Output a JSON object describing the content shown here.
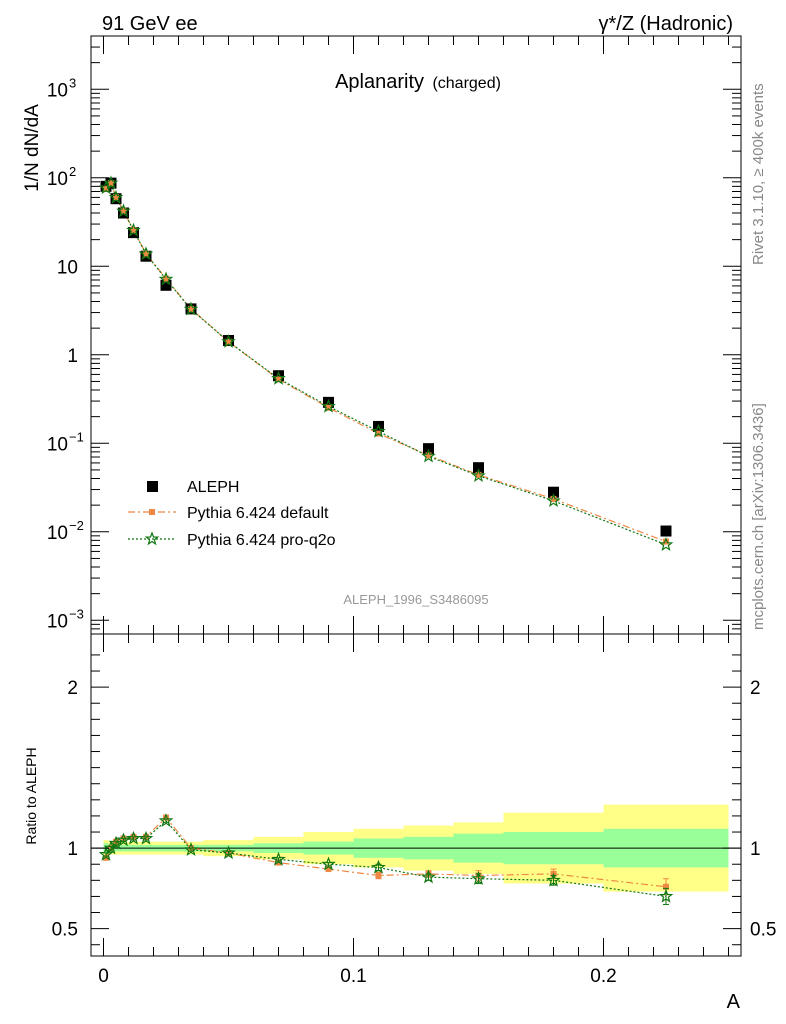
{
  "header": {
    "left": "91 GeV ee",
    "right_main": "γ*/Z (Hadronic)"
  },
  "side_labels": {
    "rivet": "Rivet 3.1.10, ≥ 400k events",
    "mcplots": "mcplots.cern.ch [arXiv:1306.3436]"
  },
  "chart_data": {
    "type": "line",
    "title_main": "Aplanarity",
    "title_sub": "(charged)",
    "analysis_tag": "ALEPH_1996_S3486095",
    "xlabel": "A",
    "ylabel": "1/N dN/dA",
    "ratio_ylabel": "Ratio to ALEPH",
    "xlim": [
      -0.005,
      0.255
    ],
    "ylim_log": [
      0.0007,
      4000
    ],
    "ratio_ylim": [
      0.33,
      2.33
    ],
    "x_ticks": [
      {
        "v": 0,
        "label": "0"
      },
      {
        "v": 0.1,
        "label": "0.1"
      },
      {
        "v": 0.2,
        "label": "0.2"
      }
    ],
    "y_ticks": [
      {
        "v": 0.001,
        "base": "10",
        "exp": "−3"
      },
      {
        "v": 0.01,
        "base": "10",
        "exp": "−2"
      },
      {
        "v": 0.1,
        "base": "10",
        "exp": "−1"
      },
      {
        "v": 1,
        "base": "1",
        "exp": ""
      },
      {
        "v": 10,
        "base": "10",
        "exp": ""
      },
      {
        "v": 100,
        "base": "10",
        "exp": "2"
      },
      {
        "v": 1000,
        "base": "10",
        "exp": "3"
      }
    ],
    "ratio_ticks": [
      {
        "v": 0.5,
        "label": "0.5"
      },
      {
        "v": 1,
        "label": "1"
      },
      {
        "v": 2,
        "label": "2"
      }
    ],
    "legend_position": "lower-left",
    "bins": [
      [
        0,
        0.002
      ],
      [
        0.002,
        0.004
      ],
      [
        0.004,
        0.006
      ],
      [
        0.006,
        0.01
      ],
      [
        0.01,
        0.014
      ],
      [
        0.014,
        0.02
      ],
      [
        0.02,
        0.03
      ],
      [
        0.03,
        0.04
      ],
      [
        0.04,
        0.06
      ],
      [
        0.06,
        0.08
      ],
      [
        0.08,
        0.1
      ],
      [
        0.1,
        0.12
      ],
      [
        0.12,
        0.14
      ],
      [
        0.14,
        0.16
      ],
      [
        0.16,
        0.2
      ],
      [
        0.2,
        0.25
      ]
    ],
    "x": [
      0.001,
      0.003,
      0.005,
      0.008,
      0.012,
      0.017,
      0.025,
      0.035,
      0.05,
      0.07,
      0.09,
      0.11,
      0.13,
      0.15,
      0.18,
      0.225
    ],
    "band_inner": [
      0.03,
      0.02,
      0.02,
      0.02,
      0.02,
      0.02,
      0.02,
      0.02,
      0.02,
      0.03,
      0.04,
      0.06,
      0.07,
      0.09,
      0.1,
      0.12
    ],
    "band_outer": [
      0.05,
      0.04,
      0.04,
      0.04,
      0.04,
      0.04,
      0.04,
      0.04,
      0.05,
      0.07,
      0.1,
      0.12,
      0.14,
      0.16,
      0.22,
      0.27
    ],
    "series": [
      {
        "name": "ALEPH",
        "color": "#000000",
        "marker": "square",
        "values": [
          80,
          87,
          58,
          40,
          24,
          13,
          6.1,
          3.3,
          1.45,
          0.58,
          0.29,
          0.155,
          0.087,
          0.053,
          0.028,
          0.0102
        ]
      },
      {
        "name": "Pythia 6.424 default",
        "color": "#ee8844",
        "marker": "square-small",
        "line": "dashdot",
        "ratio": [
          0.94,
          1.0,
          1.04,
          1.06,
          1.07,
          1.07,
          1.19,
          1.0,
          0.97,
          0.91,
          0.87,
          0.83,
          0.84,
          0.83,
          0.84,
          0.76
        ],
        "ratio_err": [
          0.01,
          0.01,
          0.01,
          0.01,
          0.01,
          0.01,
          0.01,
          0.01,
          0.01,
          0.01,
          0.01,
          0.02,
          0.02,
          0.03,
          0.03,
          0.05
        ]
      },
      {
        "name": "Pythia 6.424 pro-q2o",
        "color": "#117711",
        "marker": "star",
        "line": "dotted",
        "ratio": [
          0.96,
          1.0,
          1.03,
          1.05,
          1.06,
          1.06,
          1.17,
          0.99,
          0.97,
          0.93,
          0.9,
          0.88,
          0.82,
          0.81,
          0.8,
          0.7
        ],
        "ratio_err": [
          0.01,
          0.01,
          0.01,
          0.01,
          0.01,
          0.01,
          0.01,
          0.01,
          0.01,
          0.01,
          0.01,
          0.02,
          0.02,
          0.03,
          0.03,
          0.05
        ]
      }
    ],
    "band_colors": {
      "inner": "#99ff99",
      "outer": "#ffff88"
    }
  }
}
